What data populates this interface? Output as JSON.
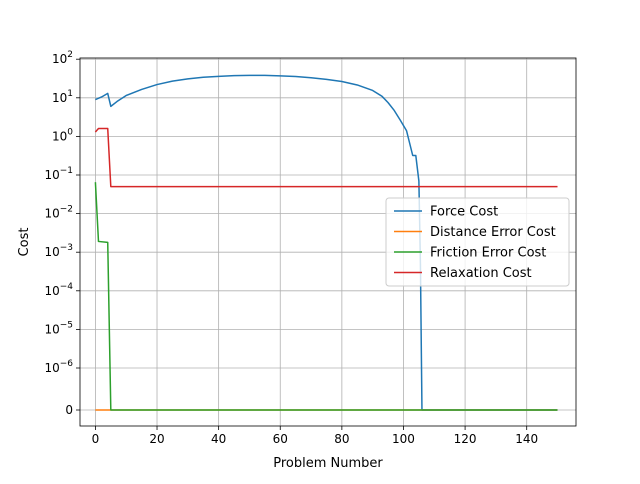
{
  "chart_data": {
    "type": "line",
    "title": "",
    "xlabel": "Problem Number",
    "ylabel": "Cost",
    "xlim": [
      -5,
      156
    ],
    "x_ticks": [
      0,
      20,
      40,
      60,
      80,
      100,
      120,
      140
    ],
    "y_scale": "symlog",
    "y_ticks": [
      {
        "value": 0,
        "label": "0"
      },
      {
        "value": 1e-06,
        "label": "10^-6"
      },
      {
        "value": 1e-05,
        "label": "10^-5"
      },
      {
        "value": 0.0001,
        "label": "10^-4"
      },
      {
        "value": 0.001,
        "label": "10^-3"
      },
      {
        "value": 0.01,
        "label": "10^-2"
      },
      {
        "value": 0.1,
        "label": "10^-1"
      },
      {
        "value": 1,
        "label": "10^0"
      },
      {
        "value": 10,
        "label": "10^1"
      },
      {
        "value": 100,
        "label": "10^2"
      }
    ],
    "grid": true,
    "legend_position": "center-right",
    "series": [
      {
        "name": "Force Cost",
        "color": "#1f77b4",
        "points": [
          [
            0,
            9
          ],
          [
            2,
            10.5
          ],
          [
            4,
            13
          ],
          [
            5,
            6
          ],
          [
            7,
            8
          ],
          [
            10,
            11.5
          ],
          [
            15,
            16.5
          ],
          [
            20,
            22
          ],
          [
            25,
            27
          ],
          [
            30,
            31
          ],
          [
            35,
            34
          ],
          [
            40,
            36
          ],
          [
            45,
            37.5
          ],
          [
            50,
            38
          ],
          [
            55,
            38
          ],
          [
            60,
            37
          ],
          [
            65,
            35.5
          ],
          [
            70,
            33
          ],
          [
            75,
            30
          ],
          [
            80,
            26.5
          ],
          [
            85,
            21.5
          ],
          [
            90,
            15.5
          ],
          [
            93,
            11
          ],
          [
            95,
            7.5
          ],
          [
            97,
            4.7
          ],
          [
            99,
            2.6
          ],
          [
            101,
            1.4
          ],
          [
            103,
            0.32
          ],
          [
            104,
            0.32
          ],
          [
            105,
            0.07
          ],
          [
            105.5,
            0.0005
          ],
          [
            106,
            0
          ],
          [
            150,
            0
          ]
        ]
      },
      {
        "name": "Distance Error Cost",
        "color": "#ff7f0e",
        "points": [
          [
            0,
            0
          ],
          [
            150,
            0
          ]
        ]
      },
      {
        "name": "Friction Error Cost",
        "color": "#2ca02c",
        "points": [
          [
            0,
            0.065
          ],
          [
            1,
            0.0019
          ],
          [
            4,
            0.0018
          ],
          [
            5,
            0
          ],
          [
            150,
            0
          ]
        ]
      },
      {
        "name": "Relaxation Cost",
        "color": "#d62728",
        "points": [
          [
            0,
            1.3
          ],
          [
            1,
            1.6
          ],
          [
            4,
            1.6
          ],
          [
            5,
            0.05
          ],
          [
            150,
            0.05
          ]
        ]
      }
    ]
  }
}
